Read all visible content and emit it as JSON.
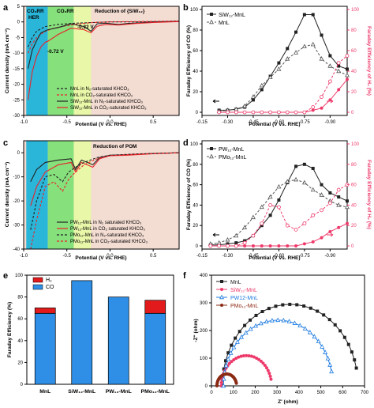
{
  "panels": {
    "a": "a",
    "b": "b",
    "c": "c",
    "d": "d",
    "e": "e",
    "f": "f"
  },
  "colors": {
    "black": "#222222",
    "red": "#e8242a",
    "pink": "#ee3a6b",
    "blue": "#1e7be0",
    "brown": "#8b2a14",
    "h2": "#e31a1c",
    "co": "#2f8fe6"
  },
  "chart_data": [
    {
      "id": "a",
      "type": "line",
      "xlabel": "Potential (V vs. RHE)",
      "ylabel": "Current density (mA cm⁻²)",
      "xlim": [
        -1.0,
        0.8
      ],
      "ylim": [
        -30,
        5
      ],
      "xticks": [
        "-1.0",
        "-0.5",
        "0.0",
        "0.5"
      ],
      "yticks": [
        "5",
        "0",
        "-5",
        "-10",
        "-15",
        "-20",
        "-25",
        "-30"
      ],
      "annotations": {
        "region1": "CO₂RR",
        "region1b": "HER",
        "region2": "CO₂RR",
        "region3": "Reduction of {SiW₁₂}",
        "v1": "-0.72 V",
        "v2": "-0.22 V"
      },
      "series": [
        {
          "name": "MnL in N₂-saturated KHCO₃",
          "style": "dash",
          "color": "#222222",
          "points": [
            [
              -0.95,
              -8
            ],
            [
              -0.9,
              -5
            ],
            [
              -0.85,
              -3
            ],
            [
              -0.75,
              -1.5
            ],
            [
              -0.6,
              -0.8
            ],
            [
              -0.4,
              -0.4
            ],
            [
              -0.2,
              -0.2
            ],
            [
              0.0,
              0
            ],
            [
              0.3,
              0
            ],
            [
              0.6,
              0.1
            ],
            [
              0.8,
              0.2
            ]
          ]
        },
        {
          "name": "MnL in CO₂-saturated KHCO₃",
          "style": "dash",
          "color": "#e8242a",
          "points": [
            [
              -0.95,
              -10
            ],
            [
              -0.9,
              -7
            ],
            [
              -0.85,
              -5
            ],
            [
              -0.8,
              -4
            ],
            [
              -0.75,
              -3
            ],
            [
              -0.65,
              -2
            ],
            [
              -0.5,
              -1.2
            ],
            [
              -0.35,
              -0.6
            ],
            [
              -0.2,
              -0.2
            ],
            [
              0.0,
              0
            ],
            [
              0.3,
              0.1
            ],
            [
              0.6,
              0.2
            ],
            [
              0.8,
              0.3
            ]
          ]
        },
        {
          "name": "SiW₁₂-MnL in N₂-saturated KHCO₃",
          "style": "solid",
          "color": "#222222",
          "points": [
            [
              -0.95,
              -15
            ],
            [
              -0.9,
              -9
            ],
            [
              -0.85,
              -6
            ],
            [
              -0.8,
              -3.5
            ],
            [
              -0.72,
              -2.5
            ],
            [
              -0.6,
              -1.8
            ],
            [
              -0.45,
              -0.6
            ],
            [
              -0.3,
              -1.5
            ],
            [
              -0.22,
              -3
            ],
            [
              -0.15,
              -0.6
            ],
            [
              -0.05,
              -0.4
            ],
            [
              0.1,
              -0.8
            ],
            [
              0.2,
              -0.5
            ],
            [
              0.4,
              -0.2
            ],
            [
              0.6,
              0
            ],
            [
              0.8,
              0.2
            ]
          ]
        },
        {
          "name": "SiW₁₂-MnL in CO₂-saturated KHCO₃",
          "style": "solid",
          "color": "#e8242a",
          "points": [
            [
              -0.95,
              -25
            ],
            [
              -0.9,
              -16
            ],
            [
              -0.85,
              -11
            ],
            [
              -0.8,
              -8
            ],
            [
              -0.75,
              -6.5
            ],
            [
              -0.72,
              -6.2
            ],
            [
              -0.6,
              -4
            ],
            [
              -0.45,
              -2
            ],
            [
              -0.3,
              -2.5
            ],
            [
              -0.22,
              -3.5
            ],
            [
              -0.15,
              -1.4
            ],
            [
              -0.05,
              -0.8
            ],
            [
              0.1,
              -1.0
            ],
            [
              0.3,
              -0.5
            ],
            [
              0.5,
              -0.2
            ],
            [
              0.8,
              0.1
            ]
          ]
        }
      ]
    },
    {
      "id": "b",
      "type": "line",
      "xlabel": "Potential (V vs. RHE)",
      "ylabel": "Faraday Efficiency of CO (%)",
      "ylabel2": "Faraday Efficiency of H₂ (%)",
      "xlim": [
        -0.15,
        -1.0
      ],
      "ylim": [
        0,
        100
      ],
      "ylim2": [
        0,
        100
      ],
      "xticks": [
        "-0.15",
        "-0.30",
        "-0.45",
        "-0.60",
        "-0.75",
        "-0.90"
      ],
      "yticks": [
        "0",
        "20",
        "40",
        "60",
        "80",
        "100"
      ],
      "x": [
        -0.25,
        -0.3,
        -0.35,
        -0.4,
        -0.45,
        -0.5,
        -0.55,
        -0.6,
        -0.65,
        -0.7,
        -0.75,
        -0.8,
        -0.85,
        -0.9,
        -0.95,
        -1.0
      ],
      "series": [
        {
          "name": "SiW₁₂-MnL",
          "axis": "left",
          "style": "solid",
          "marker": "square",
          "color": "#222222",
          "values": [
            2,
            2,
            3,
            5,
            12,
            22,
            35,
            48,
            62,
            78,
            95,
            95,
            75,
            55,
            45,
            42
          ]
        },
        {
          "name": "MnL",
          "axis": "left",
          "style": "dash",
          "marker": "triangle",
          "color": "#555555",
          "values": [
            1,
            2,
            3,
            6,
            15,
            26,
            34,
            42,
            52,
            58,
            64,
            66,
            52,
            45,
            40,
            36
          ]
        },
        {
          "axis": "right",
          "style": "solid",
          "marker": "circle",
          "color": "#ee3a6b",
          "values": [
            0,
            0,
            0,
            0,
            0,
            0,
            0,
            0,
            0,
            0,
            0,
            2,
            4,
            12,
            22,
            32
          ]
        },
        {
          "axis": "right",
          "style": "dash",
          "marker": "circle-open",
          "color": "#ee3a6b",
          "values": [
            0,
            0,
            0,
            0,
            0,
            0,
            0,
            0,
            0,
            0,
            0,
            5,
            15,
            30,
            48,
            55
          ]
        }
      ]
    },
    {
      "id": "c",
      "type": "line",
      "xlabel": "Potential (V vs. RHE)",
      "ylabel": "Current density (mA cm⁻²)",
      "xlim": [
        -1.0,
        0.8
      ],
      "ylim": [
        -40,
        5
      ],
      "xticks": [
        "-1.0",
        "-0.5",
        "0.0",
        "0.5"
      ],
      "yticks": [
        "0",
        "-10",
        "-20",
        "-30",
        "-40"
      ],
      "annotations": {
        "region": "Reduction of POM"
      },
      "series": [
        {
          "name": "PW₁₂-MnL in N₂ saturated KHCO₃",
          "style": "solid",
          "color": "#222222",
          "points": [
            [
              -0.92,
              -12
            ],
            [
              -0.85,
              -7
            ],
            [
              -0.75,
              -4
            ],
            [
              -0.6,
              -3
            ],
            [
              -0.45,
              -2.5
            ],
            [
              -0.4,
              -7
            ],
            [
              -0.33,
              -3
            ],
            [
              -0.2,
              -5
            ],
            [
              -0.12,
              -2
            ],
            [
              0.0,
              -1
            ],
            [
              0.2,
              -0.8
            ],
            [
              0.5,
              -0.3
            ],
            [
              0.8,
              0
            ]
          ]
        },
        {
          "name": "PW₁₂-MnL in CO₂ saturated KHCO₃",
          "style": "solid",
          "color": "#e8242a",
          "points": [
            [
              -0.92,
              -22
            ],
            [
              -0.85,
              -14
            ],
            [
              -0.75,
              -8
            ],
            [
              -0.6,
              -5
            ],
            [
              -0.45,
              -4
            ],
            [
              -0.4,
              -8
            ],
            [
              -0.33,
              -4
            ],
            [
              -0.2,
              -6
            ],
            [
              -0.12,
              -2.5
            ],
            [
              0.0,
              -1.2
            ],
            [
              0.2,
              -1
            ],
            [
              0.5,
              -0.4
            ],
            [
              0.8,
              0
            ]
          ]
        },
        {
          "name": "PMo₁₂-MnL in N₂-saturated KHCO₃",
          "style": "dash",
          "color": "#222222",
          "points": [
            [
              -0.92,
              -32
            ],
            [
              -0.85,
              -20
            ],
            [
              -0.75,
              -10
            ],
            [
              -0.65,
              -9
            ],
            [
              -0.55,
              -12
            ],
            [
              -0.48,
              -8
            ],
            [
              -0.4,
              -6
            ],
            [
              -0.3,
              -4
            ],
            [
              -0.15,
              -2
            ],
            [
              0.0,
              -1
            ],
            [
              0.3,
              -0.5
            ],
            [
              0.8,
              0
            ]
          ]
        },
        {
          "name": "PMo₁₂-MnL in CO₂-saturated KHCO₃",
          "style": "dash",
          "color": "#e8242a",
          "points": [
            [
              -0.92,
              -40
            ],
            [
              -0.85,
              -28
            ],
            [
              -0.75,
              -14
            ],
            [
              -0.65,
              -12
            ],
            [
              -0.55,
              -16
            ],
            [
              -0.48,
              -11
            ],
            [
              -0.4,
              -8
            ],
            [
              -0.3,
              -5
            ],
            [
              -0.15,
              -2.5
            ],
            [
              0.0,
              -1.2
            ],
            [
              0.3,
              -0.6
            ],
            [
              0.8,
              0
            ]
          ]
        }
      ]
    },
    {
      "id": "d",
      "type": "line",
      "xlabel": "Potential (V vs. RHE)",
      "ylabel": "Faraday Efficiency of CO (%)",
      "ylabel2": "Faraday Efficiency of H₂ (%)",
      "xlim": [
        -0.15,
        -1.0
      ],
      "ylim": [
        0,
        100
      ],
      "ylim2": [
        0,
        100
      ],
      "xticks": [
        "-0.15",
        "-0.30",
        "-0.45",
        "-0.60",
        "-0.75",
        "-0.90"
      ],
      "yticks": [
        "0",
        "20",
        "40",
        "60",
        "80",
        "100"
      ],
      "x": [
        -0.2,
        -0.25,
        -0.3,
        -0.35,
        -0.4,
        -0.45,
        -0.5,
        -0.55,
        -0.6,
        -0.65,
        -0.7,
        -0.75,
        -0.8,
        -0.85,
        -0.9,
        -0.95,
        -1.0
      ],
      "series": [
        {
          "name": "PW₁₂-MnL",
          "axis": "left",
          "style": "solid",
          "marker": "square",
          "color": "#222222",
          "values": [
            1,
            1,
            2,
            3,
            5,
            10,
            20,
            30,
            45,
            62,
            78,
            80,
            76,
            60,
            52,
            48,
            44
          ]
        },
        {
          "name": "PMo₁₂-MnL",
          "axis": "left",
          "style": "dash",
          "marker": "triangle",
          "color": "#555555",
          "values": [
            2,
            3,
            6,
            10,
            18,
            28,
            38,
            48,
            58,
            63,
            65,
            62,
            55,
            50,
            44,
            40,
            38
          ]
        },
        {
          "axis": "right",
          "style": "solid",
          "marker": "circle",
          "color": "#ee3a6b",
          "values": [
            0,
            0,
            0,
            0,
            0,
            0,
            0,
            0,
            0,
            0,
            0,
            2,
            4,
            8,
            14,
            18,
            22
          ]
        },
        {
          "axis": "right",
          "style": "dash",
          "marker": "circle-open",
          "color": "#ee3a6b",
          "values": [
            0,
            0,
            0,
            0,
            3,
            10,
            22,
            40,
            38,
            20,
            16,
            22,
            30,
            35,
            42,
            55,
            60
          ]
        }
      ]
    },
    {
      "id": "e",
      "type": "bar",
      "ylabel": "Faraday Efficiency (%)",
      "ylim": [
        0,
        100
      ],
      "yticks": [
        "0",
        "20",
        "40",
        "60",
        "80",
        "100"
      ],
      "categories": [
        "MnL",
        "SiW₁₂-MnL",
        "PW₁₂-MnL",
        "PMo₁₂-MnL"
      ],
      "series": [
        {
          "name": "CO",
          "values": [
            65,
            95,
            80,
            65
          ]
        },
        {
          "name": "H₂",
          "values": [
            5,
            0,
            0,
            12
          ]
        }
      ]
    },
    {
      "id": "f",
      "type": "scatter",
      "xlabel": "Z' (ohm)",
      "ylabel": "-Z'' (ohm)",
      "xlim": [
        0,
        700
      ],
      "ylim": [
        0,
        400
      ],
      "xticks": [
        "0",
        "100",
        "200",
        "300",
        "400",
        "500",
        "600",
        "700"
      ],
      "yticks": [
        "0",
        "100",
        "200",
        "300",
        "400"
      ],
      "series": [
        {
          "name": "MnL",
          "color": "#222222",
          "marker": "square",
          "center": 360,
          "radius": 310,
          "start": 30
        },
        {
          "name": "SiW₁₂-MnL",
          "color": "#ee3a6b",
          "marker": "circle",
          "center": 160,
          "radius": 115,
          "start": 15
        },
        {
          "name": "PW12-MnL",
          "color": "#1e7be0",
          "marker": "triangle",
          "center": 305,
          "radius": 250,
          "start": 20
        },
        {
          "name": "PMo₁₂-MnL",
          "color": "#8b2a14",
          "marker": "circle",
          "center": 70,
          "radius": 45,
          "start": 15
        }
      ]
    }
  ]
}
